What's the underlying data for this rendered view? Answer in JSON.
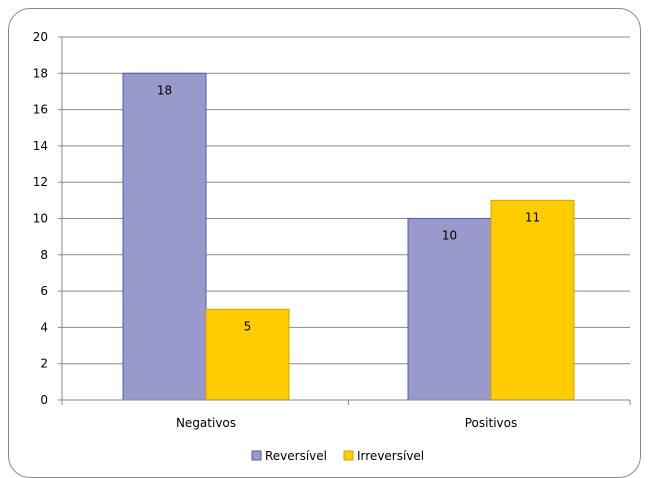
{
  "chart_data": {
    "type": "bar",
    "title": "",
    "xlabel": "",
    "ylabel": "",
    "categories": [
      "Negativos",
      "Positivos"
    ],
    "series": [
      {
        "name": "Reversível",
        "values": [
          18,
          10
        ],
        "color": "#9999cc"
      },
      {
        "name": "Irreversível",
        "values": [
          5,
          11
        ],
        "color": "#ffcc00"
      }
    ],
    "ylim": [
      0,
      20
    ],
    "yticks": [
      "0",
      "2",
      "4",
      "6",
      "8",
      "10",
      "12",
      "14",
      "16",
      "18",
      "20"
    ],
    "grid": true,
    "legend": "bottom-center",
    "gridline_color": "#8a8a8a",
    "bar_border_color": "#4a5fa8"
  }
}
